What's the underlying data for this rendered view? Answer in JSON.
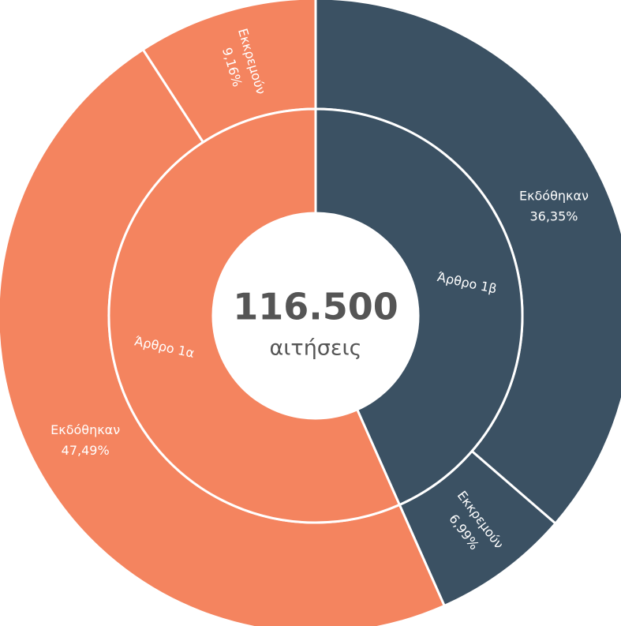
{
  "chart_data": {
    "type": "sunburst",
    "center_value": "116.500",
    "center_label": "αιτήσεις",
    "groups": [
      {
        "name": "Άρθρο 1α",
        "color": "#f4845f",
        "categories": [
          "Εκκρεμούν",
          "Εκδόθηκαν"
        ],
        "values": [
          9.16,
          47.49
        ],
        "value_labels": [
          "9,16%",
          "47,49%"
        ]
      },
      {
        "name": "Άρθρο 1β",
        "color": "#3b5163",
        "categories": [
          "Εκκρεμούν",
          "Εκδόθηκαν"
        ],
        "values": [
          6.99,
          36.35
        ],
        "value_labels": [
          "6,99%",
          "36,35%"
        ]
      }
    ]
  }
}
